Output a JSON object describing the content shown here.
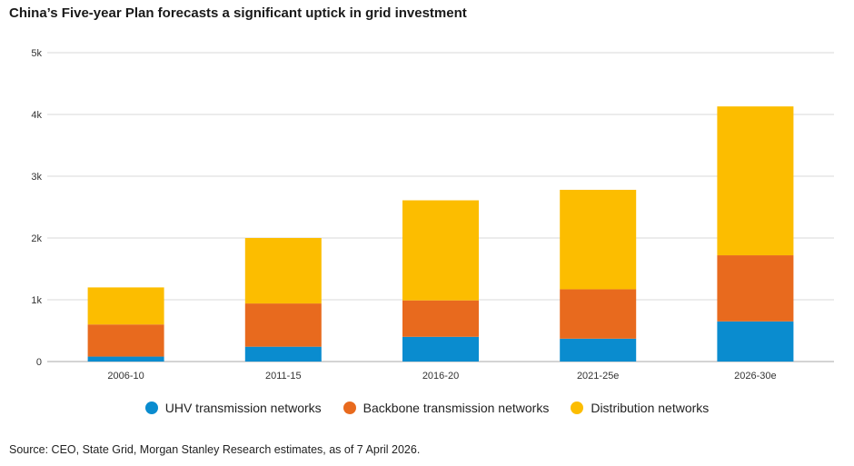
{
  "title": "China’s Five-year Plan forecasts a significant uptick in grid investment",
  "source": "Source: CEO, State Grid, Morgan Stanley Research estimates, as of 7 April 2026.",
  "colors": {
    "uhv": "#0a8ccf",
    "backbone": "#e86a1e",
    "distribution": "#fcbd00",
    "grid": "#d9d9d9",
    "axis": "#aaaaaa"
  },
  "chart_data": {
    "type": "bar",
    "stacked": true,
    "title": "China’s Five-year Plan forecasts a significant uptick in grid investment",
    "xlabel": "",
    "ylabel": "",
    "categories": [
      "2006-10",
      "2011-15",
      "2016-20",
      "2021-25e",
      "2026-30e"
    ],
    "yticks": [
      0,
      1000,
      2000,
      3000,
      4000,
      5000
    ],
    "ytick_labels": [
      "0",
      "1k",
      "2k",
      "3k",
      "4k",
      "5k"
    ],
    "ylim": [
      0,
      5000
    ],
    "grid": true,
    "legend_position": "bottom",
    "series": [
      {
        "name": "UHV transmission networks",
        "color_key": "uhv",
        "values": [
          80,
          240,
          400,
          370,
          650
        ]
      },
      {
        "name": "Backbone transmission networks",
        "color_key": "backbone",
        "values": [
          520,
          700,
          590,
          800,
          1070
        ]
      },
      {
        "name": "Distribution networks",
        "color_key": "distribution",
        "values": [
          600,
          1060,
          1620,
          1610,
          2410
        ]
      }
    ]
  }
}
